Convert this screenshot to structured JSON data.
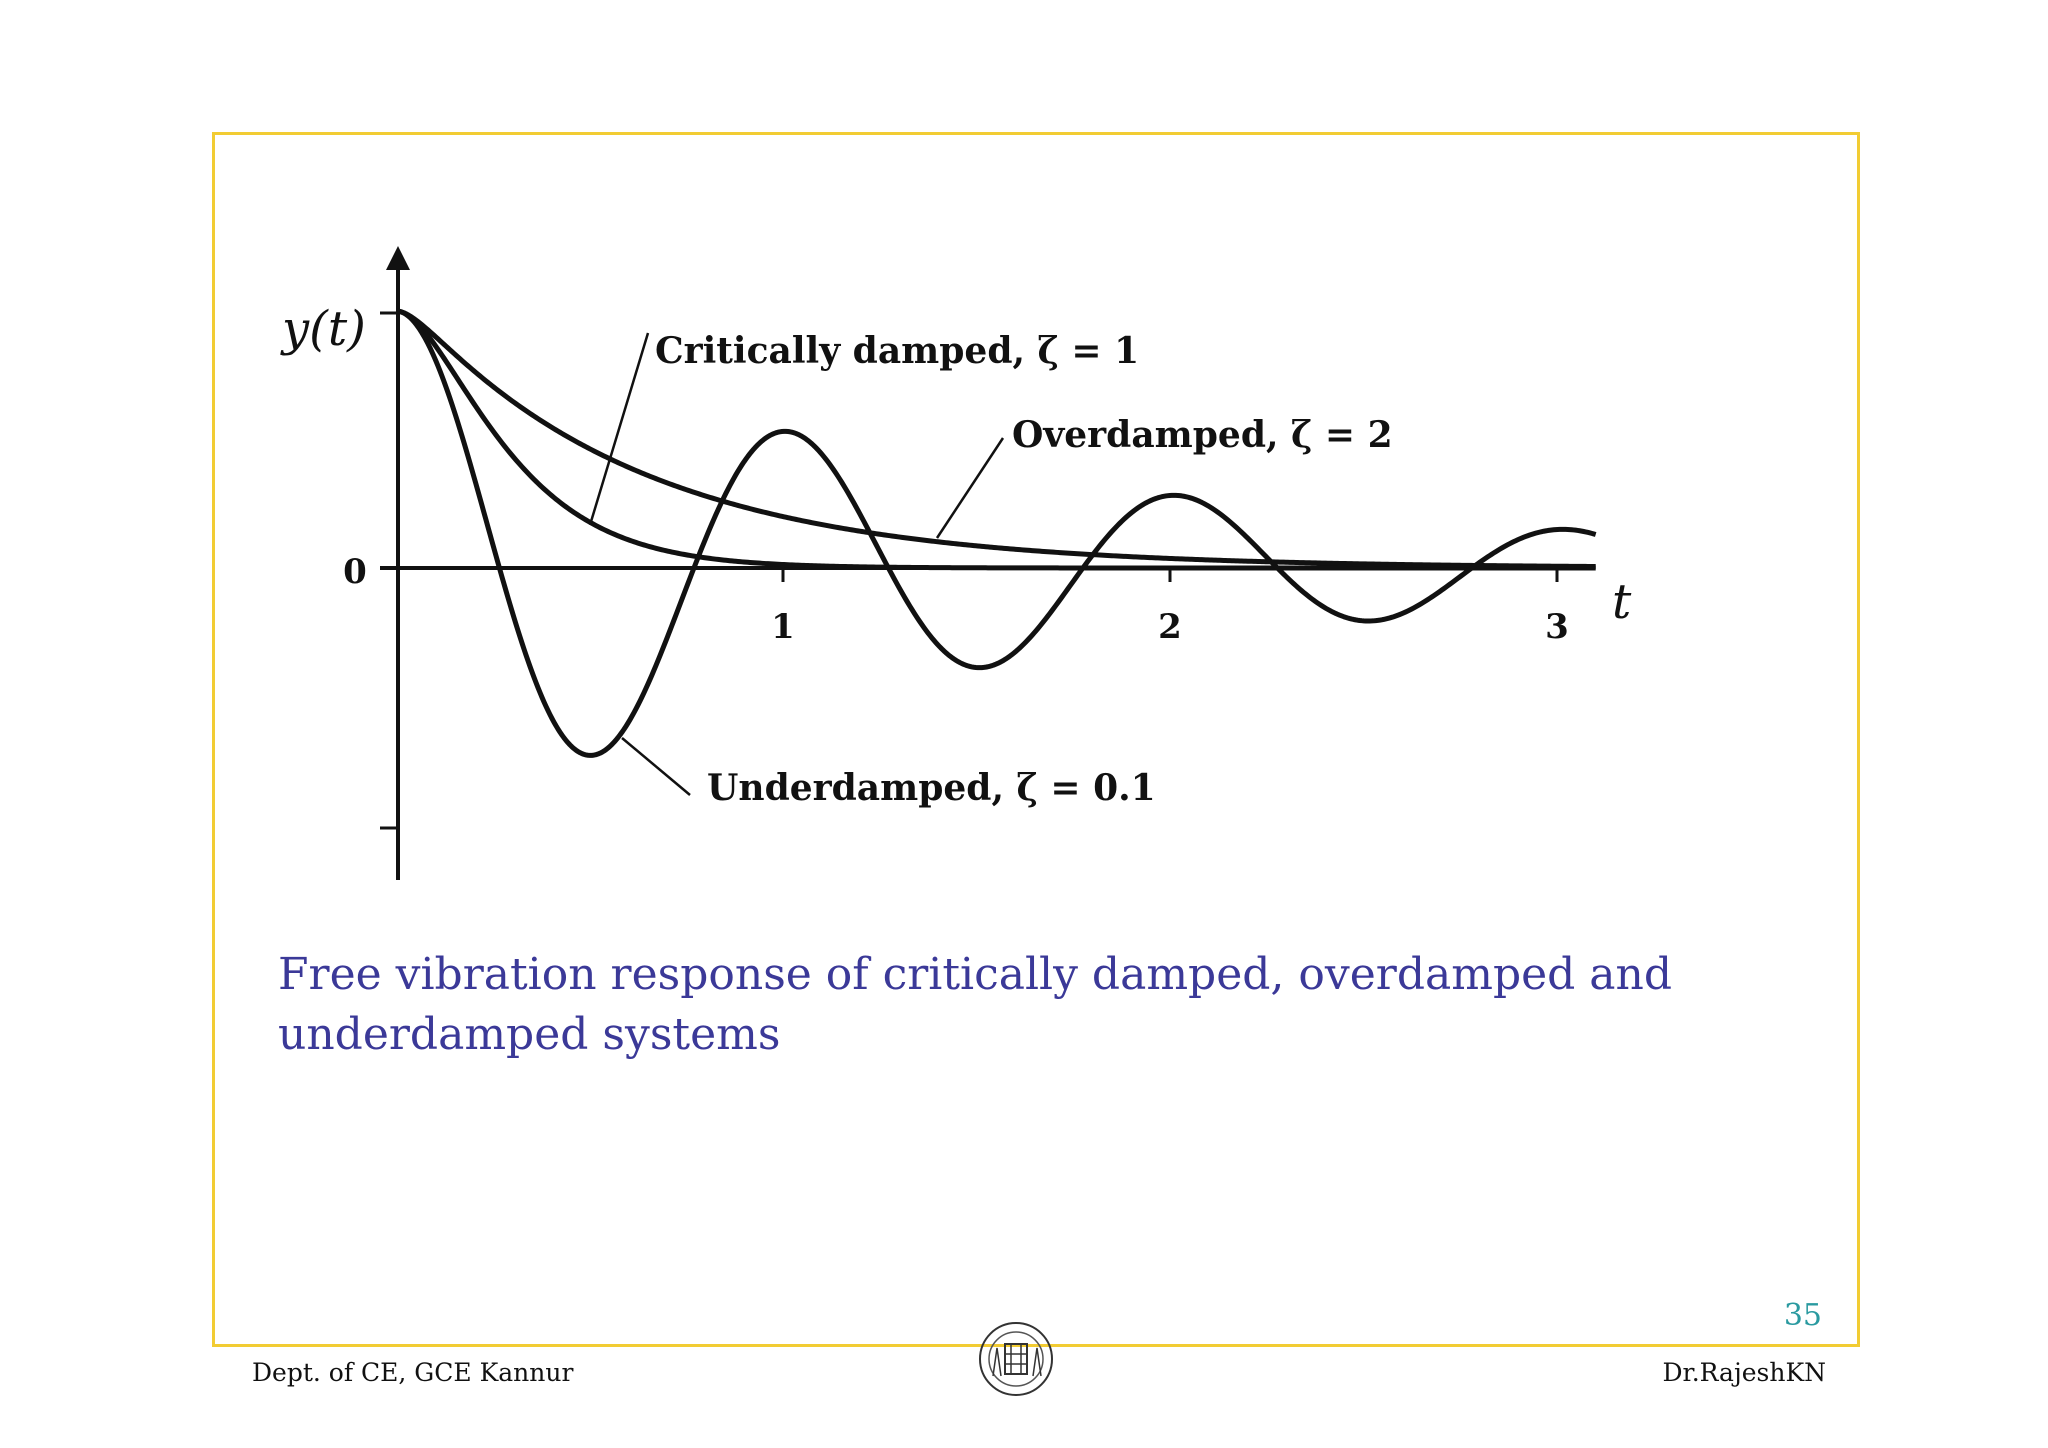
{
  "chart_data": {
    "type": "line",
    "ylabel": "y(t)",
    "xlabel": "t",
    "xlim": [
      0,
      3.1
    ],
    "ylim": [
      -1.2,
      1.0
    ],
    "x_ticks": [
      "1",
      "2",
      "3"
    ],
    "y_ticks": [
      "0"
    ],
    "series": [
      {
        "name": "Critically damped, ζ = 1",
        "zeta": 1,
        "omega_n": 6.283,
        "color": "#111111"
      },
      {
        "name": "Overdamped, ζ = 2",
        "zeta": 2,
        "omega_n": 6.283,
        "color": "#111111"
      },
      {
        "name": "Underdamped, ζ = 0.1",
        "zeta": 0.1,
        "omega_n": 6.283,
        "color": "#111111"
      }
    ],
    "annotations": [
      "Critically damped, ζ = 1",
      "Overdamped, ζ = 2",
      "Underdamped, ζ = 0.1"
    ]
  },
  "caption": "Free vibration response of critically damped, overdamped and underdamped systems",
  "footer": {
    "left": "Dept. of CE, GCE Kannur",
    "right": "Dr.RajeshKN",
    "page_number": "35",
    "logo_icon": "college-seal-icon"
  }
}
